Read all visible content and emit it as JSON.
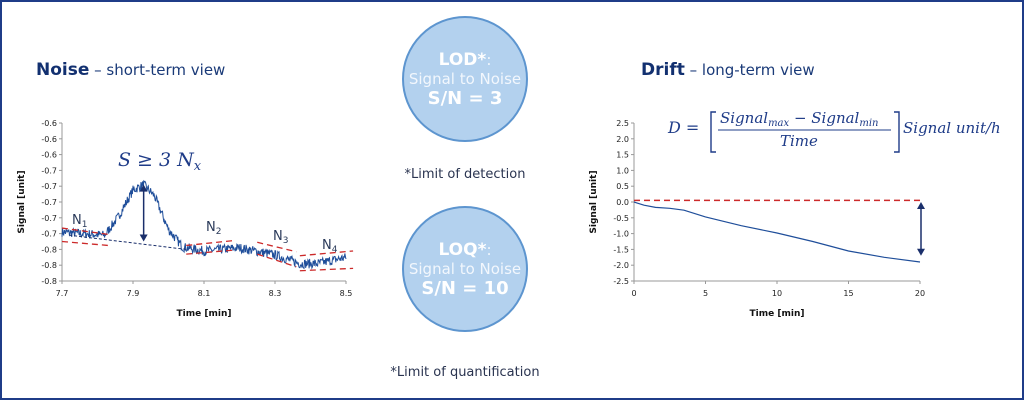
{
  "noise": {
    "title_bold": "Noise",
    "title_rest": " – short-term view",
    "equation": "S ≥ 3 N",
    "equation_sub": "x",
    "labels": [
      {
        "t": "N",
        "s": "1"
      },
      {
        "t": "N",
        "s": "2"
      },
      {
        "t": "N",
        "s": "3"
      },
      {
        "t": "N",
        "s": "4"
      }
    ]
  },
  "drift": {
    "title_bold": "Drift",
    "title_rest": " – long-term view",
    "formula": {
      "lhs": "D =",
      "num_a": "Signal",
      "num_a_sub": "max",
      "minus": " − ",
      "num_b": "Signal",
      "num_b_sub": "min",
      "den": "Time",
      "unit": "Signal unit/h"
    }
  },
  "lod": {
    "heading": "LOD*",
    "colon": ":",
    "subtitle": "Signal to Noise",
    "value": "S/N = 3",
    "note": "*Limit of detection"
  },
  "loq": {
    "heading": "LOQ*",
    "colon": ":",
    "subtitle": "Signal to Noise",
    "value": "S/N = 10",
    "note": "*Limit of quantification"
  },
  "colors": {
    "trace": "#1f4e9a",
    "band": "#cc2a2a",
    "arrow": "#1a2f6b",
    "circle_fill": "#b3d1ee",
    "circle_border": "#5d95cf",
    "frame": "#1f3c88"
  },
  "chart_data": [
    {
      "type": "line",
      "xlabel": "Time [min]",
      "ylabel": "Signal [unit]",
      "xlim": [
        7.7,
        8.5
      ],
      "ylim": [
        -0.8,
        -0.6
      ],
      "xticks": [
        7.7,
        7.9,
        8.1,
        8.3,
        8.5
      ],
      "xtick_labels": [
        "7.7",
        "7.9",
        "8.1",
        "8.3",
        "8.5"
      ],
      "ytick_labels": [
        "-0.6",
        "-0.6",
        "-0.6",
        "-0.7",
        "-0.7",
        "-0.7",
        "-0.7",
        "-0.7",
        "-0.8",
        "-0.8",
        "-0.8"
      ],
      "trace": [
        [
          7.7,
          -0.738
        ],
        [
          7.82,
          -0.742
        ],
        [
          7.86,
          -0.718
        ],
        [
          7.9,
          -0.685
        ],
        [
          7.93,
          -0.678
        ],
        [
          7.96,
          -0.692
        ],
        [
          8.0,
          -0.735
        ],
        [
          8.04,
          -0.757
        ],
        [
          8.1,
          -0.762
        ],
        [
          8.2,
          -0.758
        ],
        [
          8.3,
          -0.767
        ],
        [
          8.37,
          -0.778
        ],
        [
          8.42,
          -0.778
        ],
        [
          8.5,
          -0.77
        ]
      ],
      "baseline": [
        [
          7.72,
          -0.742
        ],
        [
          8.05,
          -0.76
        ]
      ],
      "noise_bands": [
        [
          [
            7.7,
            -0.733
          ],
          [
            7.83,
            -0.741
          ]
        ],
        [
          [
            7.7,
            -0.75
          ],
          [
            7.83,
            -0.755
          ]
        ],
        [
          [
            8.05,
            -0.755
          ],
          [
            8.18,
            -0.749
          ]
        ],
        [
          [
            8.05,
            -0.766
          ],
          [
            8.18,
            -0.761
          ]
        ],
        [
          [
            8.25,
            -0.751
          ],
          [
            8.36,
            -0.763
          ]
        ],
        [
          [
            8.25,
            -0.766
          ],
          [
            8.36,
            -0.782
          ]
        ],
        [
          [
            8.37,
            -0.768
          ],
          [
            8.52,
            -0.762
          ]
        ],
        [
          [
            8.37,
            -0.787
          ],
          [
            8.52,
            -0.784
          ]
        ]
      ]
    },
    {
      "type": "line",
      "xlabel": "Time [min]",
      "ylabel": "Signal [unit]",
      "xlim": [
        0,
        20
      ],
      "ylim": [
        -2.5,
        2.5
      ],
      "xticks": [
        0,
        5,
        10,
        15,
        20
      ],
      "xtick_labels": [
        "0",
        "5",
        "10",
        "15",
        "20"
      ],
      "yticks": [
        2.5,
        2.0,
        1.5,
        1.0,
        0.5,
        0.0,
        -0.5,
        -1.0,
        -1.5,
        -2.0,
        -2.5
      ],
      "ytick_labels": [
        "2.5",
        "2.0",
        "1.5",
        "1.0",
        "0.5",
        "0.0",
        "-0.5",
        "-1.0",
        "-1.5",
        "-2.0",
        "-2.5"
      ],
      "trace": [
        [
          0,
          0
        ],
        [
          0.7,
          -0.1
        ],
        [
          1.5,
          -0.17
        ],
        [
          2.5,
          -0.2
        ],
        [
          3.5,
          -0.26
        ],
        [
          5,
          -0.47
        ],
        [
          7.5,
          -0.75
        ],
        [
          10,
          -0.98
        ],
        [
          12.5,
          -1.25
        ],
        [
          15,
          -1.55
        ],
        [
          17.5,
          -1.75
        ],
        [
          20,
          -1.9
        ]
      ],
      "reference_line": 0.05,
      "arrow": {
        "x": 20,
        "from": 0.0,
        "to": -1.7
      }
    }
  ]
}
